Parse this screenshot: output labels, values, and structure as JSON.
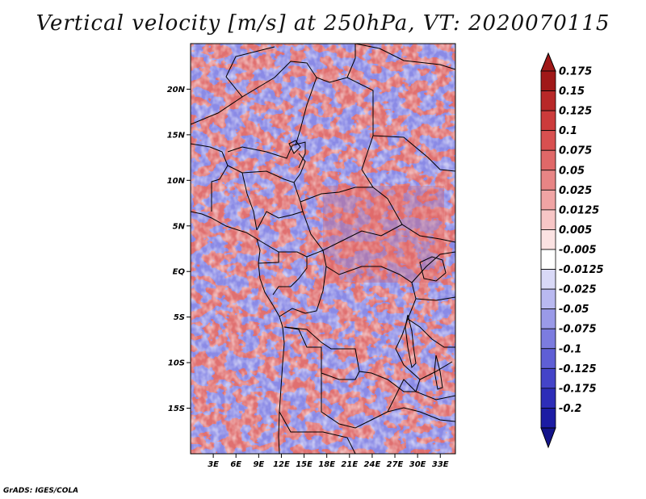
{
  "title": "Vertical velocity [m/s] at 250hPa, VT: 2020070115",
  "credit": "GrADS: IGES/COLA",
  "map": {
    "lon_range": [
      0,
      35
    ],
    "lat_range": [
      -20,
      25
    ],
    "lat_ticks": [
      {
        "value": 20,
        "label": "20N"
      },
      {
        "value": 15,
        "label": "15N"
      },
      {
        "value": 10,
        "label": "10N"
      },
      {
        "value": 5,
        "label": "5N"
      },
      {
        "value": 0,
        "label": "EQ"
      },
      {
        "value": -5,
        "label": "5S"
      },
      {
        "value": -10,
        "label": "10S"
      },
      {
        "value": -15,
        "label": "15S"
      }
    ],
    "lon_ticks": [
      {
        "value": 3,
        "label": "3E"
      },
      {
        "value": 6,
        "label": "6E"
      },
      {
        "value": 9,
        "label": "9E"
      },
      {
        "value": 12,
        "label": "12E"
      },
      {
        "value": 15,
        "label": "15E"
      },
      {
        "value": 18,
        "label": "18E"
      },
      {
        "value": 21,
        "label": "21E"
      },
      {
        "value": 24,
        "label": "24E"
      },
      {
        "value": 27,
        "label": "27E"
      },
      {
        "value": 30,
        "label": "30E"
      },
      {
        "value": 33,
        "label": "33E"
      }
    ]
  },
  "colorbar": {
    "levels": [
      {
        "label": "0.175",
        "color": "#a01818"
      },
      {
        "label": "0.15",
        "color": "#b82828"
      },
      {
        "label": "0.125",
        "color": "#cc3b3b"
      },
      {
        "label": "0.1",
        "color": "#d85050"
      },
      {
        "label": "0.075",
        "color": "#e06868"
      },
      {
        "label": "0.05",
        "color": "#e88585"
      },
      {
        "label": "0.025",
        "color": "#f0a4a4"
      },
      {
        "label": "0.0125",
        "color": "#f7c6c6"
      },
      {
        "label": "0.005",
        "color": "#fbe2e2"
      },
      {
        "label": "-0.005",
        "color": "#ffffff"
      },
      {
        "label": "-0.0125",
        "color": "#d9d9f7"
      },
      {
        "label": "-0.025",
        "color": "#b9b9f0"
      },
      {
        "label": "-0.05",
        "color": "#9a9ae8"
      },
      {
        "label": "-0.075",
        "color": "#7c7cdf"
      },
      {
        "label": "-0.1",
        "color": "#5f5fd5"
      },
      {
        "label": "-0.125",
        "color": "#4444c8"
      },
      {
        "label": "-0.175",
        "color": "#2d2db8"
      },
      {
        "label": "-0.2",
        "color": "#1c1ca3"
      }
    ],
    "top_arrow_color": "#a01818",
    "bottom_arrow_color": "#14148a"
  }
}
